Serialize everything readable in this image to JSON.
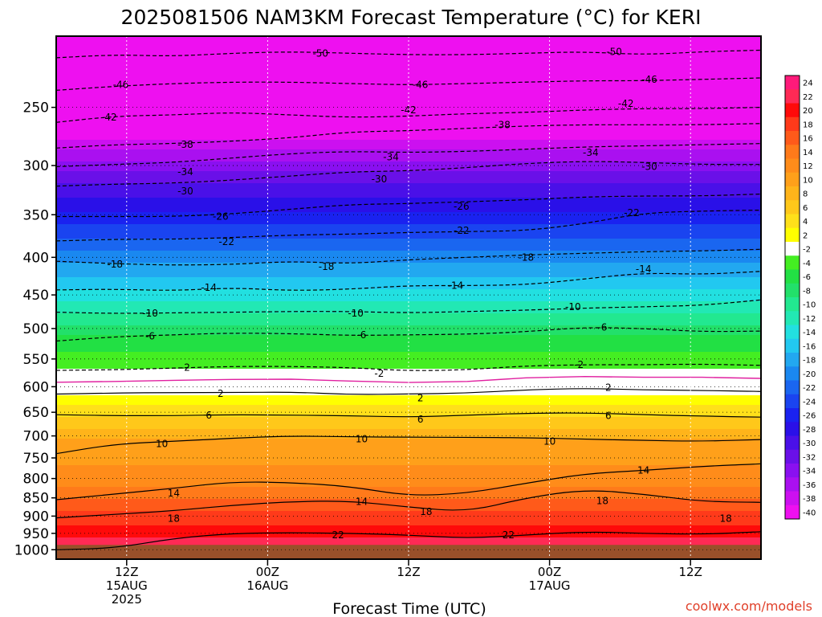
{
  "title": "2025081506 NAM3KM Forecast Temperature (°C) for KERI",
  "credit": "coolwx.com/models",
  "chart_data": {
    "type": "heatmap",
    "title": "2025081506 NAM3KM Forecast Temperature (°C) for KERI",
    "xlabel": "Forecast Time (UTC)",
    "ylabel": "",
    "y_scale": "log",
    "ylim": [
      1000,
      200
    ],
    "xlim_hours": [
      0,
      60
    ],
    "y_ticks": [
      "250",
      "300",
      "350",
      "400",
      "450",
      "500",
      "550",
      "600",
      "650",
      "700",
      "750",
      "800",
      "850",
      "900",
      "950",
      "1000"
    ],
    "x_ticks": [
      {
        "hour": 6,
        "lines": [
          "12Z",
          "15AUG",
          "2025"
        ]
      },
      {
        "hour": 18,
        "lines": [
          "00Z",
          "16AUG"
        ]
      },
      {
        "hour": 30,
        "lines": [
          "12Z"
        ]
      },
      {
        "hour": 42,
        "lines": [
          "00Z",
          "17AUG"
        ]
      },
      {
        "hour": 54,
        "lines": [
          "12Z"
        ]
      }
    ],
    "colorbar_ticks": [
      "24",
      "22",
      "20",
      "18",
      "16",
      "14",
      "12",
      "10",
      "8",
      "6",
      "4",
      "2",
      "-2",
      "-4",
      "-6",
      "-8",
      "-10",
      "-12",
      "-14",
      "-16",
      "-18",
      "-20",
      "-22",
      "-24",
      "-26",
      "-28",
      "-30",
      "-32",
      "-34",
      "-36",
      "-38",
      "-40"
    ],
    "colorbar_colors": [
      "#ff1a7a",
      "#ff2a55",
      "#ff0a0a",
      "#ff3a1a",
      "#ff5a1a",
      "#ff7a1a",
      "#ff8c1a",
      "#ffa01a",
      "#ffb41a",
      "#ffc81a",
      "#ffe01a",
      "#ffff00",
      "#ffffff",
      "#44ee22",
      "#22e044",
      "#22e06a",
      "#22e890",
      "#22e8b4",
      "#22e0e0",
      "#22c8f0",
      "#22a8f0",
      "#1a88f0",
      "#1a66f0",
      "#1a44f0",
      "#1a22f0",
      "#2a10e8",
      "#4a10e8",
      "#6a10e8",
      "#8a10f0",
      "#aa10f0",
      "#cc10f0",
      "#ee10f0"
    ],
    "isotherms": [
      {
        "value": "-50",
        "pressures": [
          214,
          212,
          213,
          211,
          210,
          211,
          212,
          212,
          211,
          210,
          212,
          210,
          209
        ],
        "dashed": true,
        "labels": [
          {
            "hour": 22.5,
            "p": 211
          },
          {
            "hour": 47.5,
            "p": 210
          }
        ]
      },
      {
        "value": "-46",
        "pressures": [
          237,
          234,
          232,
          231,
          231,
          232,
          233,
          232,
          231,
          230,
          230,
          229,
          228
        ],
        "dashed": true,
        "labels": [
          {
            "hour": 5.5,
            "p": 233
          },
          {
            "hour": 31,
            "p": 233
          },
          {
            "hour": 50.5,
            "p": 229
          }
        ]
      },
      {
        "value": "-42",
        "pressures": [
          262,
          257,
          256,
          254,
          256,
          258,
          257,
          255,
          254,
          252,
          251,
          251,
          250
        ],
        "dashed": true,
        "labels": [
          {
            "hour": 4.5,
            "p": 258
          },
          {
            "hour": 30,
            "p": 252
          },
          {
            "hour": 48.5,
            "p": 247
          }
        ]
      },
      {
        "value": "-38",
        "pressures": [
          284,
          281,
          280,
          278,
          275,
          270,
          269,
          267,
          265,
          264,
          264,
          264,
          263
        ],
        "dashed": true,
        "labels": [
          {
            "hour": 11,
            "p": 281
          },
          {
            "hour": 38,
            "p": 264
          }
        ]
      },
      {
        "value": "-34",
        "pressures": [
          301,
          299,
          297,
          293,
          289,
          287,
          288,
          287,
          285,
          283,
          282,
          281,
          280
        ],
        "dashed": true,
        "labels": [
          {
            "hour": 11,
            "p": 306
          },
          {
            "hour": 28.5,
            "p": 292
          },
          {
            "hour": 45.5,
            "p": 288
          }
        ]
      },
      {
        "value": "-30",
        "pressures": [
          320,
          318,
          317,
          314,
          310,
          306,
          305,
          302,
          298,
          296,
          297,
          299,
          299
        ],
        "dashed": true,
        "labels": [
          {
            "hour": 11,
            "p": 325
          },
          {
            "hour": 27.5,
            "p": 313
          },
          {
            "hour": 50.5,
            "p": 301
          }
        ]
      },
      {
        "value": "-26",
        "pressures": [
          352,
          352,
          352,
          349,
          344,
          339,
          338,
          336,
          334,
          331,
          330,
          330,
          328
        ],
        "dashed": true,
        "labels": [
          {
            "hour": 14,
            "p": 352
          },
          {
            "hour": 34.5,
            "p": 341
          }
        ]
      },
      {
        "value": "-22",
        "pressures": [
          380,
          378,
          378,
          376,
          373,
          372,
          370,
          369,
          368,
          360,
          348,
          346,
          345
        ],
        "dashed": true,
        "labels": [
          {
            "hour": 14.5,
            "p": 381
          },
          {
            "hour": 34.5,
            "p": 368
          },
          {
            "hour": 49,
            "p": 348
          }
        ]
      },
      {
        "value": "-18",
        "pressures": [
          405,
          408,
          410,
          409,
          405,
          408,
          403,
          400,
          397,
          395,
          393,
          392,
          390
        ],
        "dashed": true,
        "labels": [
          {
            "hour": 5,
            "p": 409
          },
          {
            "hour": 23,
            "p": 412
          },
          {
            "hour": 40,
            "p": 400
          }
        ]
      },
      {
        "value": "-14",
        "pressures": [
          443,
          442,
          444,
          440,
          444,
          442,
          437,
          437,
          436,
          428,
          420,
          422,
          418
        ],
        "dashed": true,
        "labels": [
          {
            "hour": 13,
            "p": 440
          },
          {
            "hour": 34,
            "p": 437
          },
          {
            "hour": 50,
            "p": 415
          }
        ]
      },
      {
        "value": "-10",
        "pressures": [
          475,
          477,
          476,
          475,
          474,
          474,
          476,
          474,
          472,
          469,
          467,
          465,
          457
        ],
        "dashed": true,
        "labels": [
          {
            "hour": 8,
            "p": 477
          },
          {
            "hour": 25.5,
            "p": 477
          },
          {
            "hour": 44,
            "p": 467
          }
        ]
      },
      {
        "value": "-6",
        "pressures": [
          520,
          513,
          510,
          507,
          508,
          511,
          510,
          509,
          505,
          498,
          500,
          505,
          504
        ],
        "dashed": true,
        "labels": [
          {
            "hour": 8,
            "p": 512
          },
          {
            "hour": 26,
            "p": 510
          },
          {
            "hour": 46.5,
            "p": 498
          }
        ]
      },
      {
        "value": "-2",
        "pressures": [
          570,
          569,
          566,
          563,
          563,
          565,
          571,
          569,
          562,
          560,
          560,
          559,
          561
        ],
        "dashed": true,
        "labels": [
          {
            "hour": 11,
            "p": 565
          },
          {
            "hour": 27.5,
            "p": 576
          },
          {
            "hour": 44.5,
            "p": 560
          }
        ]
      },
      {
        "value": "2",
        "pressures": [
          614,
          612,
          611,
          611,
          610,
          615,
          614,
          612,
          606,
          603,
          606,
          607,
          609
        ],
        "dashed": false,
        "labels": [
          {
            "hour": 14,
            "p": 613
          },
          {
            "hour": 31,
            "p": 622
          },
          {
            "hour": 47,
            "p": 602
          }
        ]
      },
      {
        "value": "6",
        "pressures": [
          655,
          657,
          657,
          655,
          656,
          657,
          660,
          656,
          652,
          651,
          655,
          658,
          660
        ],
        "dashed": false,
        "labels": [
          {
            "hour": 13,
            "p": 656
          },
          {
            "hour": 31,
            "p": 665
          },
          {
            "hour": 47,
            "p": 657
          }
        ]
      },
      {
        "value": "10",
        "pressures": [
          740,
          718,
          712,
          705,
          700,
          702,
          703,
          703,
          704,
          707,
          710,
          712,
          708
        ],
        "dashed": false,
        "labels": [
          {
            "hour": 9,
            "p": 718
          },
          {
            "hour": 26,
            "p": 707
          },
          {
            "hour": 42,
            "p": 712
          }
        ]
      },
      {
        "value": "14",
        "pressures": [
          855,
          840,
          825,
          808,
          810,
          820,
          845,
          838,
          812,
          788,
          780,
          770,
          764
        ],
        "dashed": false,
        "labels": [
          {
            "hour": 10,
            "p": 838
          },
          {
            "hour": 26,
            "p": 860
          },
          {
            "hour": 50,
            "p": 780
          }
        ]
      },
      {
        "value": "18",
        "pressures": [
          905,
          895,
          885,
          870,
          860,
          858,
          875,
          888,
          850,
          828,
          840,
          860,
          862
        ],
        "dashed": false,
        "labels": [
          {
            "hour": 10,
            "p": 907
          },
          {
            "hour": 31.5,
            "p": 888
          },
          {
            "hour": 46.5,
            "p": 858
          },
          {
            "hour": 57,
            "p": 907
          }
        ]
      },
      {
        "value": "22",
        "pressures": [
          1000,
          995,
          965,
          950,
          948,
          950,
          955,
          965,
          955,
          945,
          950,
          953,
          945
        ],
        "dashed": false,
        "labels": [
          {
            "hour": 24,
            "p": 955
          },
          {
            "hour": 38.5,
            "p": 955
          }
        ]
      }
    ],
    "temperature_profile": [
      {
        "p": 200,
        "t": -50
      },
      {
        "p": 230,
        "t": -46
      },
      {
        "p": 255,
        "t": -42
      },
      {
        "p": 275,
        "t": -38
      },
      {
        "p": 295,
        "t": -34
      },
      {
        "p": 315,
        "t": -30
      },
      {
        "p": 345,
        "t": -26
      },
      {
        "p": 375,
        "t": -22
      },
      {
        "p": 405,
        "t": -18
      },
      {
        "p": 440,
        "t": -14
      },
      {
        "p": 475,
        "t": -10
      },
      {
        "p": 510,
        "t": -6
      },
      {
        "p": 565,
        "t": -2
      },
      {
        "p": 590,
        "t": 0
      },
      {
        "p": 612,
        "t": 2
      },
      {
        "p": 655,
        "t": 6
      },
      {
        "p": 705,
        "t": 10
      },
      {
        "p": 820,
        "t": 14
      },
      {
        "p": 885,
        "t": 18
      },
      {
        "p": 960,
        "t": 22
      },
      {
        "p": 1000,
        "t": 24
      }
    ],
    "ground_level_hpa": 985
  }
}
